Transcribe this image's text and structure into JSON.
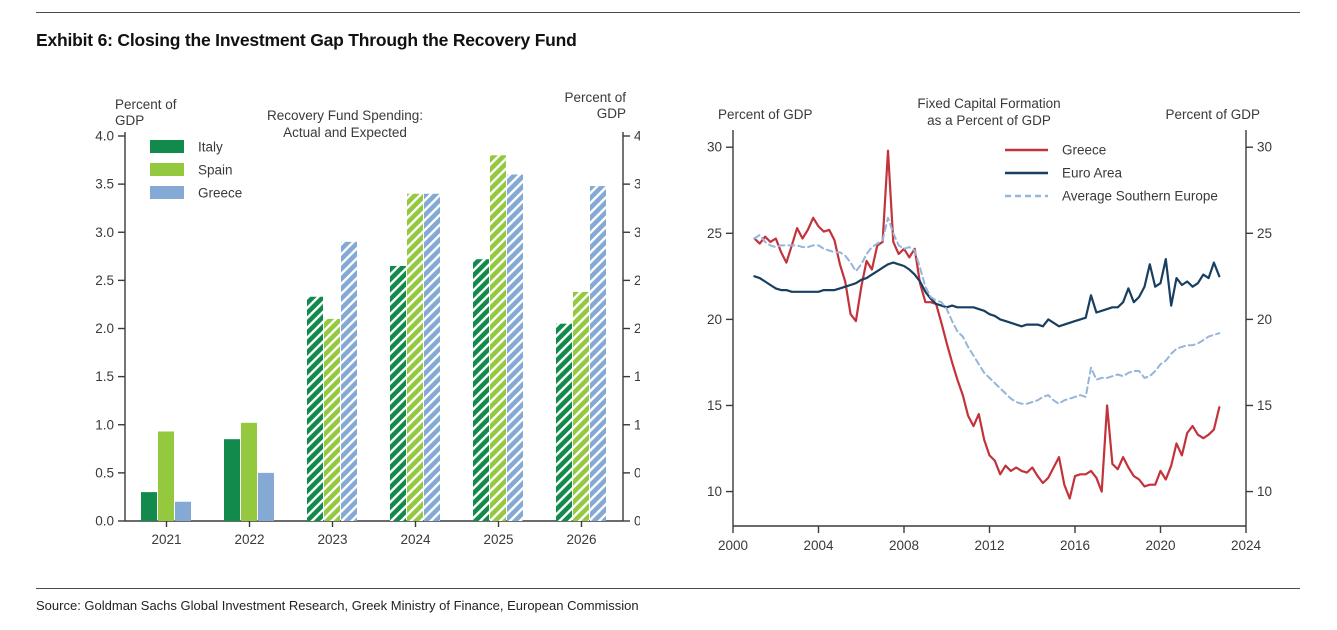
{
  "page": {
    "title": "Exhibit 6: Closing the Investment Gap Through the Recovery Fund",
    "source": "Source: Goldman Sachs Global Investment Research, Greek Ministry of Finance, European Commission"
  },
  "colors": {
    "italy": "#118a4c",
    "spain": "#94c83f",
    "greece_bar": "#83a9d4",
    "greece_line": "#c2333b",
    "euro_area": "#173f61",
    "southern_europe": "#96b5db",
    "axis": "#3a3a3a"
  },
  "chart_data": [
    {
      "type": "bar",
      "title_lines": [
        "Recovery Fund Spending:",
        "Actual and Expected"
      ],
      "left_axis_label_lines": [
        "Percent of",
        "GDP"
      ],
      "right_axis_label_lines": [
        "Percent of",
        "GDP"
      ],
      "categories": [
        "2021",
        "2022",
        "2023",
        "2024",
        "2025",
        "2026"
      ],
      "hatched_categories": [
        "2023",
        "2024",
        "2025",
        "2026"
      ],
      "ylim": [
        0,
        4
      ],
      "ytick_step": 0.5,
      "grid": false,
      "legend_position": "top-left",
      "series": [
        {
          "name": "Italy",
          "color_key": "italy",
          "values": [
            0.3,
            0.85,
            2.33,
            2.65,
            2.72,
            2.05
          ]
        },
        {
          "name": "Spain",
          "color_key": "spain",
          "values": [
            0.93,
            1.02,
            2.1,
            3.4,
            3.8,
            2.38
          ]
        },
        {
          "name": "Greece",
          "color_key": "greece_bar",
          "values": [
            0.2,
            0.5,
            2.9,
            3.4,
            3.6,
            3.48
          ]
        }
      ]
    },
    {
      "type": "line",
      "title_lines": [
        "Fixed Capital Formation",
        "as a Percent of GDP"
      ],
      "left_axis_label": "Percent of GDP",
      "right_axis_label": "Percent of GDP",
      "xlim": [
        2000,
        2024
      ],
      "xticks": [
        2000,
        2004,
        2008,
        2012,
        2016,
        2020,
        2024
      ],
      "ylim": [
        8,
        31
      ],
      "yticks": [
        10,
        15,
        20,
        25,
        30
      ],
      "grid": false,
      "legend_position": "top-right",
      "x_start": 2001.0,
      "x_step": 0.25,
      "series": [
        {
          "name": "Greece",
          "color_key": "greece_line",
          "style": "solid",
          "values": [
            24.7,
            24.4,
            24.8,
            24.5,
            24.7,
            23.9,
            23.3,
            24.3,
            25.3,
            24.7,
            25.2,
            25.9,
            25.4,
            25.1,
            25.2,
            24.6,
            23.2,
            22.2,
            20.3,
            19.9,
            21.9,
            23.4,
            22.9,
            24.3,
            24.5,
            29.8,
            24.5,
            23.8,
            24.1,
            23.6,
            24.1,
            22.1,
            21.0,
            21.0,
            20.9,
            19.8,
            18.6,
            17.5,
            16.5,
            15.6,
            14.4,
            13.8,
            14.5,
            13.0,
            12.1,
            11.8,
            11.0,
            11.5,
            11.2,
            11.4,
            11.2,
            11.1,
            11.4,
            10.9,
            10.5,
            10.8,
            11.4,
            12.0,
            10.4,
            9.6,
            10.9,
            11.0,
            11.0,
            11.2,
            10.8,
            10.0,
            15.0,
            11.6,
            11.3,
            12.0,
            11.4,
            10.9,
            10.7,
            10.3,
            10.4,
            10.4,
            11.2,
            10.7,
            11.5,
            12.8,
            12.1,
            13.4,
            13.8,
            13.3,
            13.1,
            13.3,
            13.6,
            14.9
          ]
        },
        {
          "name": "Euro Area",
          "color_key": "euro_area",
          "style": "solid",
          "values": [
            22.5,
            22.4,
            22.2,
            22.0,
            21.8,
            21.7,
            21.7,
            21.6,
            21.6,
            21.6,
            21.6,
            21.6,
            21.6,
            21.7,
            21.7,
            21.7,
            21.8,
            21.9,
            22.0,
            22.1,
            22.3,
            22.4,
            22.6,
            22.8,
            23.0,
            23.2,
            23.3,
            23.2,
            23.1,
            22.9,
            22.6,
            22.2,
            21.6,
            21.2,
            20.9,
            20.8,
            20.7,
            20.8,
            20.7,
            20.7,
            20.7,
            20.7,
            20.6,
            20.5,
            20.3,
            20.2,
            20.0,
            19.9,
            19.8,
            19.7,
            19.6,
            19.7,
            19.7,
            19.7,
            19.6,
            20.0,
            19.8,
            19.6,
            19.7,
            19.8,
            19.9,
            20.0,
            20.1,
            21.4,
            20.4,
            20.5,
            20.6,
            20.7,
            20.7,
            21.0,
            21.8,
            21.0,
            21.3,
            21.9,
            23.2,
            21.9,
            22.1,
            23.5,
            20.8,
            22.4,
            22.0,
            22.2,
            21.9,
            22.1,
            22.6,
            22.4,
            23.3,
            22.5
          ]
        },
        {
          "name": "Average Southern Europe",
          "color_key": "southern_europe",
          "style": "dashed",
          "values": [
            24.7,
            24.9,
            24.5,
            24.3,
            24.2,
            24.3,
            24.3,
            24.3,
            24.3,
            24.2,
            24.2,
            24.3,
            24.3,
            24.1,
            24.0,
            23.9,
            23.9,
            23.7,
            23.3,
            22.8,
            23.2,
            23.8,
            24.2,
            24.4,
            24.6,
            25.9,
            25.0,
            24.3,
            24.1,
            24.2,
            24.0,
            23.0,
            21.9,
            21.3,
            21.1,
            21.0,
            20.6,
            19.9,
            19.3,
            19.0,
            18.4,
            17.9,
            17.4,
            16.9,
            16.6,
            16.3,
            16.0,
            15.7,
            15.4,
            15.2,
            15.1,
            15.1,
            15.2,
            15.3,
            15.5,
            15.6,
            15.3,
            15.1,
            15.3,
            15.4,
            15.5,
            15.6,
            15.5,
            17.2,
            16.5,
            16.6,
            16.6,
            16.7,
            16.8,
            16.7,
            16.9,
            17.0,
            17.0,
            16.6,
            16.7,
            17.0,
            17.4,
            17.6,
            18.0,
            18.3,
            18.4,
            18.5,
            18.5,
            18.6,
            18.8,
            19.0,
            19.1,
            19.2
          ]
        }
      ]
    }
  ]
}
